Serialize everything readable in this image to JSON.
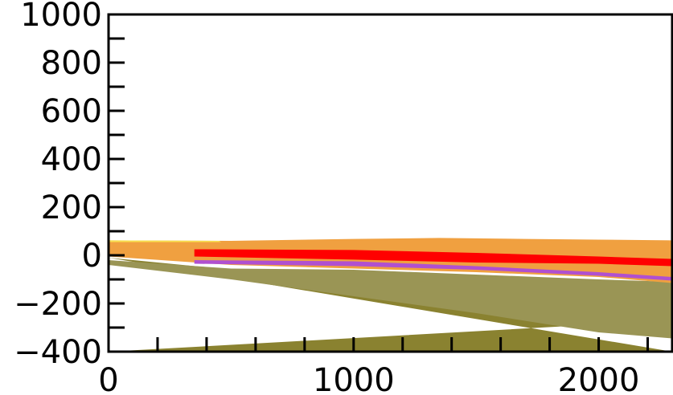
{
  "chart_data": {
    "type": "area",
    "title": "",
    "xlabel": "",
    "ylabel": "",
    "xlim": [
      0,
      2300
    ],
    "ylim": [
      -400,
      1000
    ],
    "x_ticks": [
      0,
      1000,
      2000
    ],
    "x_minor_step": 200,
    "y_ticks": [
      -400,
      -200,
      0,
      200,
      400,
      600,
      800,
      1000
    ],
    "y_minor_step": 100,
    "grid": false,
    "legend": "none",
    "layers": [
      {
        "color": "#8a8230",
        "top": [
          [
            0,
            -10
          ],
          [
            500,
            -60
          ],
          [
            1000,
            -120
          ],
          [
            1500,
            -180
          ],
          [
            2000,
            -240
          ],
          [
            2300,
            -270
          ]
        ],
        "bottom": [
          [
            0,
            -400
          ],
          [
            2300,
            -400
          ]
        ]
      },
      {
        "color": "#9a9555",
        "top": [
          [
            0,
            -20
          ],
          [
            500,
            -55
          ],
          [
            1000,
            -60
          ],
          [
            1500,
            -80
          ],
          [
            2000,
            -100
          ],
          [
            2300,
            -110
          ]
        ],
        "bottom": [
          [
            2300,
            -345
          ],
          [
            2000,
            -320
          ],
          [
            1500,
            -240
          ],
          [
            1000,
            -170
          ],
          [
            500,
            -100
          ],
          [
            0,
            -40
          ]
        ]
      },
      {
        "color": "#f0a040",
        "top": [
          [
            0,
            62
          ],
          [
            500,
            60
          ],
          [
            1000,
            68
          ],
          [
            1350,
            72
          ],
          [
            1700,
            68
          ],
          [
            2000,
            65
          ],
          [
            2300,
            62
          ]
        ],
        "bottom": [
          [
            2300,
            -115
          ],
          [
            2000,
            -90
          ],
          [
            1500,
            -70
          ],
          [
            1000,
            -55
          ],
          [
            500,
            -40
          ],
          [
            0,
            -5
          ]
        ]
      },
      {
        "color": "#f8e050",
        "top": [
          [
            0,
            62
          ],
          [
            450,
            60
          ],
          [
            460,
            55
          ],
          [
            0,
            55
          ]
        ],
        "bottom": []
      },
      {
        "color": "#b050d0",
        "top": [
          [
            350,
            -20
          ],
          [
            1000,
            -25
          ],
          [
            1500,
            -45
          ],
          [
            2000,
            -70
          ],
          [
            2300,
            -90
          ]
        ],
        "bottom": [
          [
            2300,
            -105
          ],
          [
            2000,
            -85
          ],
          [
            1500,
            -60
          ],
          [
            1000,
            -45
          ],
          [
            350,
            -35
          ]
        ]
      },
      {
        "color": "#ff0000",
        "top": [
          [
            350,
            25
          ],
          [
            1000,
            22
          ],
          [
            1500,
            10
          ],
          [
            2000,
            -5
          ],
          [
            2300,
            -15
          ]
        ],
        "bottom": [
          [
            2300,
            -45
          ],
          [
            2000,
            -35
          ],
          [
            1500,
            -30
          ],
          [
            1000,
            -18
          ],
          [
            350,
            -5
          ]
        ]
      }
    ]
  }
}
